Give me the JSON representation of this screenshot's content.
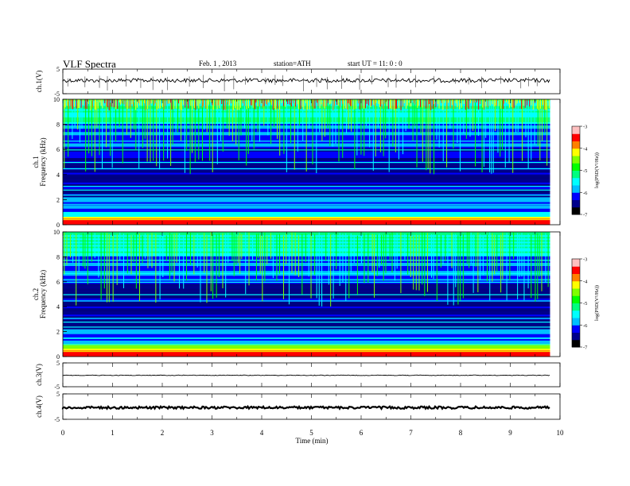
{
  "header": {
    "title": "VLF  Spectra",
    "date": "Feb. 1 , 2013",
    "station": "station=ATH",
    "start": "start  UT  =    11: 0  : 0"
  },
  "chart_data": [
    {
      "type": "line",
      "panel": "ch1-waveform",
      "ylabel": "ch.1(V)",
      "ylim": [
        -5,
        5
      ],
      "yticks": [
        "5",
        "-5"
      ],
      "baseline_value": 0.4,
      "color": "#000000"
    },
    {
      "type": "heatmap",
      "panel": "ch1-spectrogram",
      "ylabel": "ch.1\nFrequency  (kHz)",
      "ylim": [
        0,
        10
      ],
      "yticks": [
        "0",
        "2",
        "4",
        "6",
        "8",
        "10"
      ],
      "colorbar": {
        "label": "log(PSD(V²/Hz))",
        "range": [
          -7,
          -3
        ],
        "ticks": [
          "-3",
          "-4",
          "-5",
          "-6",
          "-7"
        ]
      }
    },
    {
      "type": "heatmap",
      "panel": "ch2-spectrogram",
      "ylabel": "ch.2\nFrequency  (kHz)",
      "ylim": [
        0,
        10
      ],
      "yticks": [
        "0",
        "2",
        "4",
        "6",
        "8",
        "10"
      ],
      "colorbar": {
        "label": "log(PSD(V²/Hz))",
        "range": [
          -7,
          -3
        ],
        "ticks": [
          "-3",
          "-4",
          "-5",
          "-6",
          "-7"
        ]
      }
    },
    {
      "type": "line",
      "panel": "ch3-waveform",
      "ylabel": "ch.3(V)",
      "ylim": [
        -5,
        5
      ],
      "yticks": [
        "5",
        "-5"
      ],
      "baseline_value": -0.2,
      "color": "#000000"
    },
    {
      "type": "line",
      "panel": "ch4-waveform",
      "ylabel": "ch.4(V)",
      "ylim": [
        -5,
        5
      ],
      "yticks": [
        "5",
        "-5"
      ],
      "baseline_value": -0.4,
      "color": "#000000"
    }
  ],
  "xaxis": {
    "label": "Time  (min)",
    "xlim": [
      0,
      10
    ],
    "ticks": [
      "0",
      "1",
      "2",
      "3",
      "4",
      "5",
      "6",
      "7",
      "8",
      "9",
      "10"
    ],
    "data_end": 9.8
  },
  "colormap": [
    "#000000",
    "#00008b",
    "#0000ff",
    "#00bfff",
    "#00ffff",
    "#00ff7f",
    "#00ff00",
    "#7fff00",
    "#ffff00",
    "#ff7f00",
    "#ff0000",
    "#ffc0c0"
  ]
}
